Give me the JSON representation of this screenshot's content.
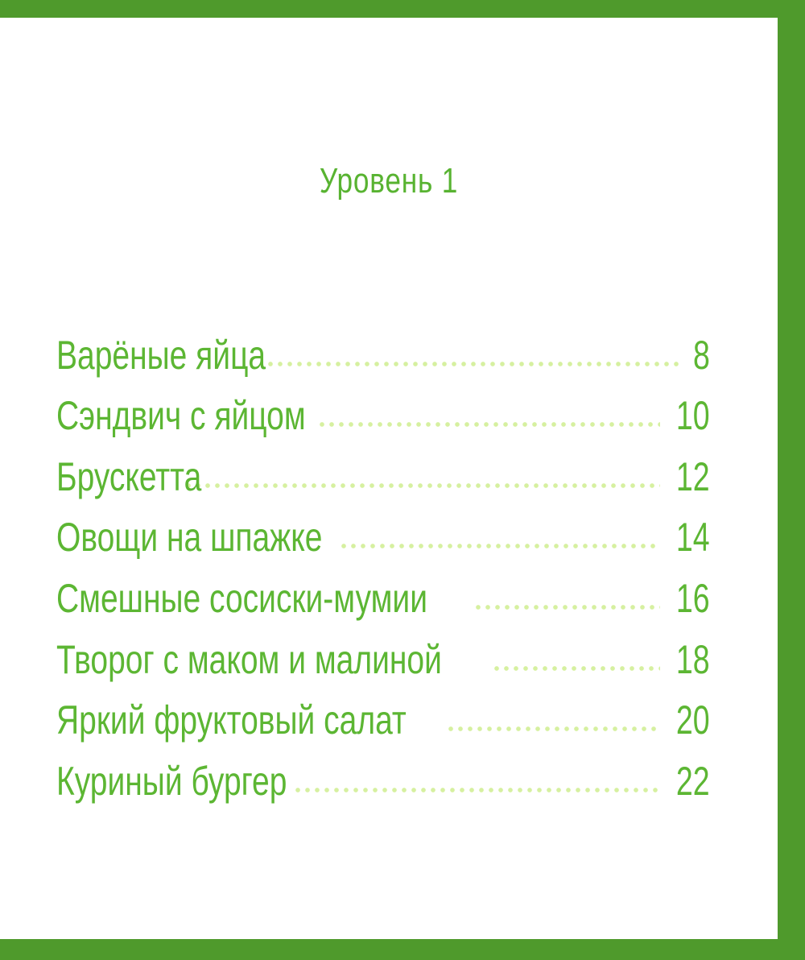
{
  "title": "Уровень 1",
  "entries": [
    {
      "label": "Варёные яйца",
      "page": "8"
    },
    {
      "label": "Сэндвич с яйцом",
      "page": "10"
    },
    {
      "label": "Брускетта",
      "page": "12"
    },
    {
      "label": "Овощи на шпажке",
      "page": "14"
    },
    {
      "label": "Смешные сосиски-мумии",
      "page": "16"
    },
    {
      "label": "Творог с маком и малиной",
      "page": "18"
    },
    {
      "label": "Яркий фруктовый салат",
      "page": "20"
    },
    {
      "label": "Куриный бургер",
      "page": "22"
    }
  ],
  "colors": {
    "border": "#4f9a2c",
    "text": "#5cb633",
    "leader_dots": "#d6f0a0"
  }
}
